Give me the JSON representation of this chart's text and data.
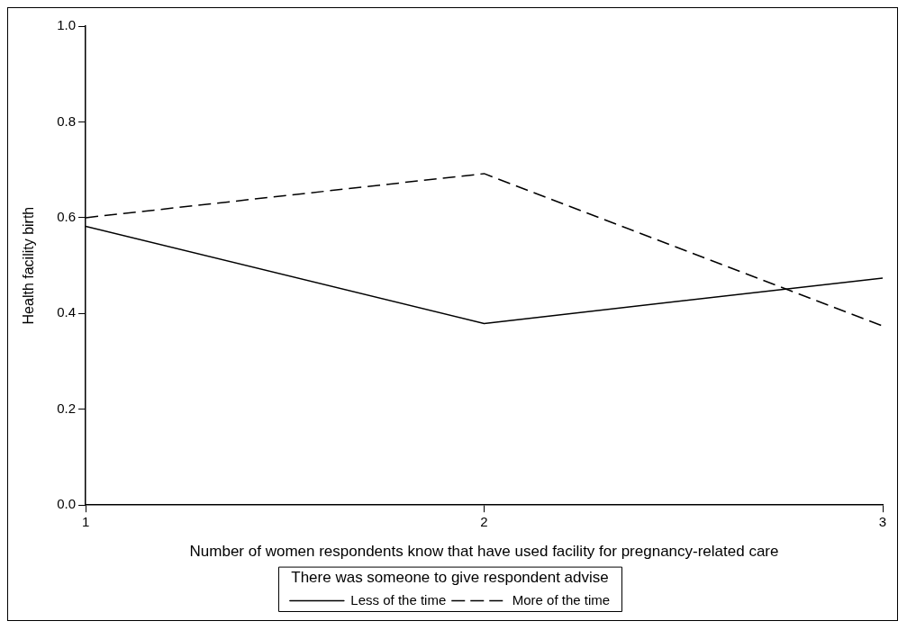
{
  "chart_data": {
    "type": "line",
    "xlabel": "Number of women respondents know that have used facility for pregnancy-related care",
    "ylabel": "Health facility birth",
    "legend_title": "There was someone to give respondent advise",
    "x": [
      1,
      2,
      3
    ],
    "xlim": [
      1,
      3
    ],
    "xticks": [
      1,
      2,
      3
    ],
    "ylim": [
      0,
      1
    ],
    "yticks": [
      {
        "value": 0,
        "label": "0.0"
      },
      {
        "value": 0.2,
        "label": "0.2"
      },
      {
        "value": 0.4,
        "label": "0.4"
      },
      {
        "value": 0.6,
        "label": "0.6"
      },
      {
        "value": 0.8,
        "label": "0.8"
      },
      {
        "value": 1,
        "label": "1.0"
      }
    ],
    "grid": false,
    "legend": "bottom",
    "marker": "none",
    "series": [
      {
        "name": "Less of the time",
        "color": "#000000",
        "values": [
          0.582,
          0.379,
          0.474
        ],
        "line_style": "solid"
      },
      {
        "name": "More of the time",
        "color": "#000000",
        "values": [
          0.6,
          0.692,
          0.374
        ],
        "line_style": "dashed"
      }
    ]
  }
}
